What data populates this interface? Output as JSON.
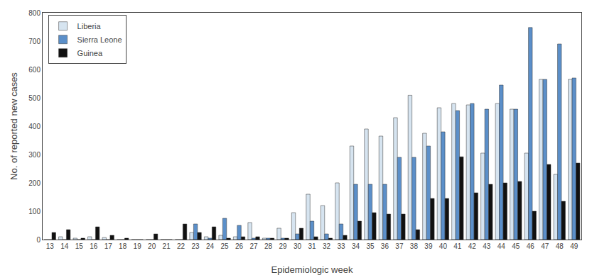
{
  "chart_data": {
    "type": "bar",
    "xlabel": "Epidemiologic week",
    "ylabel": "No. of reported new cases",
    "categories": [
      "13",
      "14",
      "15",
      "16",
      "17",
      "18",
      "19",
      "20",
      "21",
      "22",
      "23",
      "24",
      "25",
      "26",
      "27",
      "28",
      "29",
      "30",
      "31",
      "32",
      "33",
      "34",
      "35",
      "36",
      "37",
      "38",
      "39",
      "40",
      "41",
      "42",
      "43",
      "44",
      "45",
      "46",
      "47",
      "48",
      "49"
    ],
    "series": [
      {
        "name": "Liberia",
        "color": "#d6e4f0",
        "values": [
          0,
          10,
          5,
          10,
          7,
          0,
          0,
          0,
          0,
          0,
          25,
          10,
          15,
          10,
          60,
          5,
          40,
          95,
          160,
          120,
          200,
          330,
          390,
          365,
          430,
          509,
          375,
          465,
          480,
          475,
          305,
          480,
          460,
          305,
          565,
          230,
          565
        ]
      },
      {
        "name": "Sierra Leone",
        "color": "#5b8fc9",
        "values": [
          0,
          0,
          0,
          0,
          0,
          0,
          0,
          0,
          0,
          0,
          55,
          5,
          75,
          50,
          5,
          5,
          5,
          20,
          65,
          20,
          55,
          195,
          195,
          195,
          290,
          290,
          330,
          380,
          455,
          480,
          460,
          545,
          460,
          748,
          565,
          690,
          570
        ]
      },
      {
        "name": "Guinea",
        "color": "#111111",
        "values": [
          25,
          35,
          5,
          45,
          15,
          5,
          0,
          20,
          0,
          55,
          25,
          45,
          5,
          10,
          10,
          5,
          5,
          40,
          10,
          5,
          15,
          65,
          95,
          90,
          90,
          35,
          145,
          145,
          292,
          165,
          195,
          200,
          205,
          100,
          265,
          135,
          270
        ]
      }
    ],
    "ylim": [
      0,
      800
    ],
    "yticks": [
      0,
      100,
      200,
      300,
      400,
      500,
      600,
      700,
      800
    ],
    "grid": false,
    "legend": "upper left"
  }
}
